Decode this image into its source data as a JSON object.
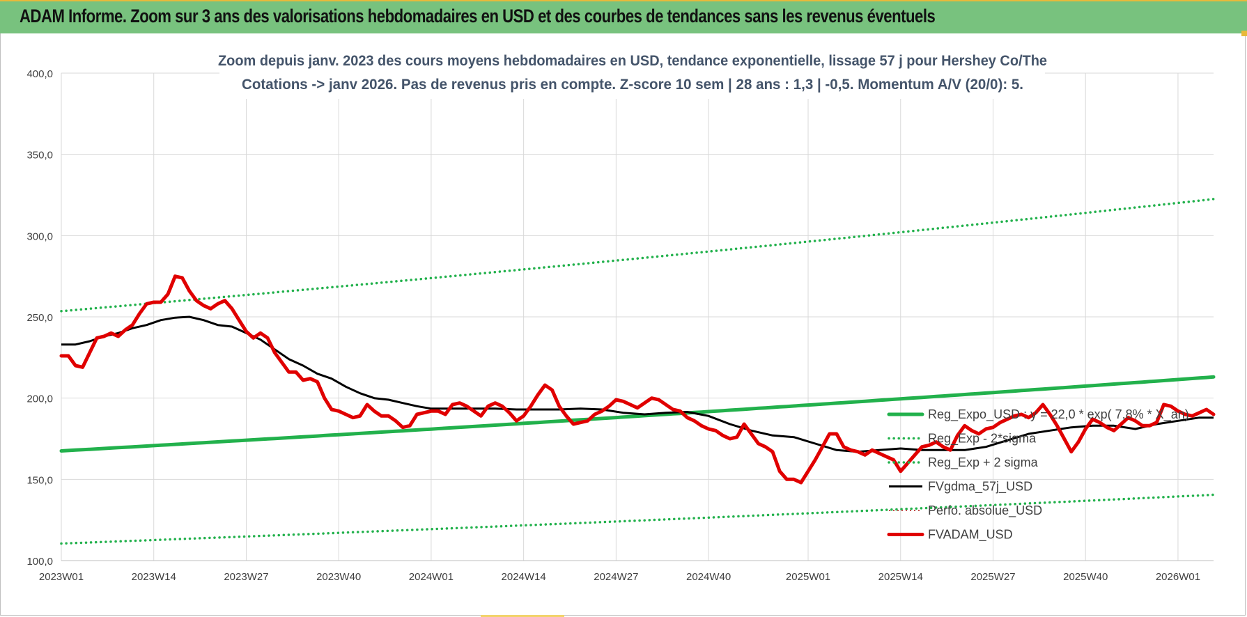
{
  "page": {
    "header_title": "ADAM Informe. Zoom sur 3 ans des valorisations hebdomadaires en USD et des courbes de tendances sans les revenus éventuels"
  },
  "chart_data": {
    "type": "line",
    "title_lines": [
      "Zoom depuis janv. 2023 des cours moyens hebdomadaires en USD, tendance exponentielle, lissage 57 j pour Hershey Co/The",
      "Cotations -> janv 2026. Pas de revenus pris en compte. Z-score 10 sem | 28 ans : 1,3 | -0,5. Momentum A/V (20/0): 5."
    ],
    "xlabel": "",
    "ylabel": "",
    "ylim": [
      100,
      400
    ],
    "y_ticks": [
      "100,0",
      "150,0",
      "200,0",
      "250,0",
      "300,0",
      "350,0",
      "400,0"
    ],
    "x_ticks": [
      {
        "w": 0,
        "label": "2023W01"
      },
      {
        "w": 13,
        "label": "2023W14"
      },
      {
        "w": 26,
        "label": "2023W27"
      },
      {
        "w": 39,
        "label": "2023W40"
      },
      {
        "w": 52,
        "label": "2024W01"
      },
      {
        "w": 65,
        "label": "2024W14"
      },
      {
        "w": 78,
        "label": "2024W27"
      },
      {
        "w": 91,
        "label": "2024W40"
      },
      {
        "w": 105,
        "label": "2025W01"
      },
      {
        "w": 118,
        "label": "2025W14"
      },
      {
        "w": 131,
        "label": "2025W27"
      },
      {
        "w": 144,
        "label": "2025W40"
      },
      {
        "w": 157,
        "label": "2026W01"
      }
    ],
    "x_max": 162,
    "grid": true,
    "legend_position": "right",
    "series": [
      {
        "name": "Reg_Expo_USD : y = 22,0 * exp( 7,8% * X_an)",
        "color": "#22b14c",
        "style": "solid-thick",
        "x": [
          0,
          162
        ],
        "values": [
          167.5,
          213.0
        ],
        "curve": "exponential"
      },
      {
        "name": "Reg_Exp - 2*sigma",
        "color": "#22b14c",
        "style": "dotted",
        "x": [
          0,
          162
        ],
        "values": [
          110.5,
          140.5
        ],
        "curve": "exponential"
      },
      {
        "name": "Reg_Exp + 2 sigma",
        "color": "#22b14c",
        "style": "dotted",
        "x": [
          0,
          162
        ],
        "values": [
          253.5,
          322.5
        ],
        "curve": "exponential"
      },
      {
        "name": "FVgdma_57j_USD",
        "color": "#000000",
        "style": "solid",
        "x": [
          0,
          2,
          4,
          6,
          8,
          10,
          12,
          14,
          16,
          18,
          20,
          22,
          24,
          26,
          28,
          30,
          32,
          34,
          36,
          38,
          40,
          42,
          44,
          46,
          48,
          50,
          52,
          55,
          58,
          61,
          64,
          67,
          70,
          73,
          76,
          79,
          82,
          85,
          88,
          91,
          94,
          97,
          100,
          103,
          106,
          109,
          112,
          115,
          118,
          121,
          124,
          127,
          130,
          133,
          136,
          139,
          142,
          145,
          148,
          151,
          154,
          157,
          160,
          162
        ],
        "values": [
          233,
          233,
          235,
          238,
          240,
          243,
          245,
          248,
          249.5,
          250,
          248,
          245,
          244,
          240,
          236,
          230,
          224,
          220,
          215,
          212,
          207,
          203,
          200,
          199,
          197,
          195,
          193.5,
          193.5,
          193.5,
          193.5,
          193,
          193,
          193,
          193.5,
          193,
          191,
          190,
          191,
          191.5,
          189,
          184,
          180,
          177,
          176,
          172,
          168,
          167,
          168,
          169,
          168,
          168,
          168,
          170,
          174,
          178,
          180,
          182,
          183,
          183,
          181,
          184,
          186,
          188,
          188
        ]
      },
      {
        "name": "Perfo. absolue_USD",
        "color": "#c0504d",
        "style": "dotted-thin",
        "x": [],
        "values": []
      },
      {
        "name": "FVADAM_USD",
        "color": "#e00000",
        "style": "solid-thick",
        "x": [
          0,
          1,
          2,
          3,
          4,
          5,
          6,
          7,
          8,
          9,
          10,
          11,
          12,
          13,
          14,
          15,
          16,
          17,
          18,
          19,
          20,
          21,
          22,
          23,
          24,
          25,
          26,
          27,
          28,
          29,
          30,
          31,
          32,
          33,
          34,
          35,
          36,
          37,
          38,
          39,
          40,
          41,
          42,
          43,
          44,
          45,
          46,
          47,
          48,
          49,
          50,
          51,
          52,
          53,
          54,
          55,
          56,
          57,
          58,
          59,
          60,
          61,
          62,
          63,
          64,
          65,
          66,
          67,
          68,
          69,
          70,
          71,
          72,
          73,
          74,
          75,
          76,
          77,
          78,
          79,
          80,
          81,
          82,
          83,
          84,
          85,
          86,
          87,
          88,
          89,
          90,
          91,
          92,
          93,
          94,
          95,
          96,
          97,
          98,
          99,
          100,
          101,
          102,
          103,
          104,
          105,
          106,
          107,
          108,
          109,
          110,
          111,
          112,
          113,
          114,
          115,
          116,
          117,
          118,
          119,
          120,
          121,
          122,
          123,
          124,
          125,
          126,
          127,
          128,
          129,
          130,
          131,
          132,
          133,
          134,
          135,
          136,
          137,
          138,
          139,
          140,
          141,
          142,
          143,
          144,
          145,
          146,
          147,
          148,
          149,
          150,
          151,
          152,
          153,
          154,
          155,
          156,
          157,
          158,
          159,
          160,
          161,
          162
        ],
        "values": [
          226,
          226,
          220,
          219,
          228,
          237,
          238,
          240,
          238,
          242,
          245,
          252,
          258,
          259,
          259,
          264,
          275,
          274,
          266,
          260,
          257,
          255,
          258,
          260,
          255,
          248,
          241,
          237,
          240,
          237,
          228,
          222,
          216,
          216,
          211,
          212,
          210,
          200,
          193,
          192,
          190,
          188,
          189,
          196,
          192,
          189,
          189,
          186,
          182,
          183,
          190,
          191,
          192,
          192,
          190,
          196,
          197,
          195,
          192,
          189,
          195,
          197,
          195,
          191,
          186,
          189,
          195,
          202,
          208,
          205,
          195,
          189,
          184,
          185,
          186,
          190,
          192,
          195,
          199,
          198,
          196,
          194,
          197,
          200,
          199,
          196,
          193,
          192,
          188,
          186,
          183,
          181,
          180,
          177,
          175,
          176,
          184,
          178,
          172,
          170,
          167,
          155,
          150,
          150,
          148,
          155,
          162,
          170,
          178,
          178,
          170,
          168,
          167,
          165,
          168,
          166,
          164,
          162,
          155,
          160,
          165,
          170,
          171,
          173,
          170,
          168,
          177,
          183,
          180,
          178,
          181,
          182,
          185,
          187,
          189,
          190,
          188,
          191,
          196,
          190,
          183,
          175,
          167,
          173,
          181,
          187,
          185,
          182,
          180,
          184,
          188,
          186,
          183,
          183,
          185,
          196,
          195,
          192,
          190,
          189,
          191,
          193,
          190
        ]
      }
    ]
  }
}
